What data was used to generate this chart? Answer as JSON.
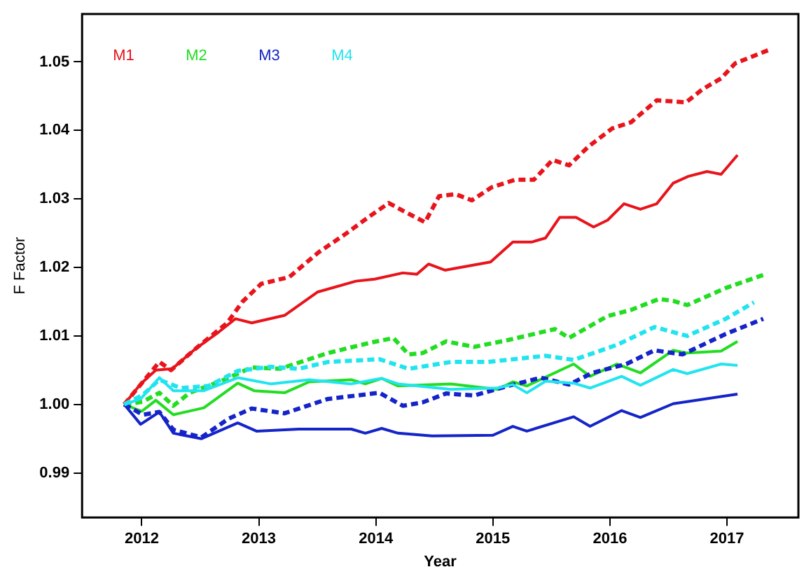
{
  "chart_data": {
    "type": "line",
    "xlabel": "Year",
    "ylabel": "F Factor",
    "xlim": [
      2011.49,
      2017.61
    ],
    "xticks": [
      2012,
      2013,
      2014,
      2015,
      2016,
      2017
    ],
    "ylim": [
      0.9835,
      1.057
    ],
    "yticks": [
      0.99,
      {
        "value": 1,
        "label": "1.00"
      },
      1.01,
      1.02,
      1.03,
      1.04,
      1.05
    ],
    "grid": false,
    "legend": "top left",
    "marker": "none",
    "series": [
      {
        "name": "M1",
        "color": "#e8141c",
        "line_style": "solid",
        "x": [
          2011.85,
          2011.99,
          2012.12,
          2012.26,
          2012.45,
          2012.66,
          2012.8,
          2012.94,
          2013.22,
          2013.5,
          2013.83,
          2013.99,
          2014.23,
          2014.35,
          2014.45,
          2014.59,
          2014.98,
          2015.17,
          2015.33,
          2015.45,
          2015.57,
          2015.71,
          2015.86,
          2015.98,
          2016.12,
          2016.26,
          2016.4,
          2016.54,
          2016.67,
          2016.83,
          2016.95,
          2017.09
        ],
        "values": [
          1.0,
          1.003,
          1.005,
          1.0052,
          1.008,
          1.0106,
          1.0125,
          1.0119,
          1.013,
          1.0164,
          1.018,
          1.0183,
          1.0192,
          1.019,
          1.0205,
          1.0196,
          1.0208,
          1.0237,
          1.0237,
          1.0243,
          1.0273,
          1.0273,
          1.0259,
          1.0269,
          1.0293,
          1.0285,
          1.0293,
          1.0323,
          1.0333,
          1.034,
          1.0336,
          1.0364
        ]
      },
      {
        "color": "#e8141c",
        "line_style": "dashed",
        "x": [
          2011.85,
          2012.15,
          2012.25,
          2012.45,
          2012.73,
          2012.86,
          2013.02,
          2013.26,
          2013.51,
          2013.75,
          2013.95,
          2014.11,
          2014.24,
          2014.42,
          2014.54,
          2014.68,
          2014.82,
          2014.99,
          2015.19,
          2015.35,
          2015.51,
          2015.65,
          2015.82,
          2016.02,
          2016.18,
          2016.4,
          2016.65,
          2016.79,
          2016.95,
          2017.07,
          2017.35
        ],
        "values": [
          1.0,
          1.0062,
          1.005,
          1.008,
          1.0119,
          1.015,
          1.0176,
          1.0186,
          1.0222,
          1.025,
          1.0275,
          1.0294,
          1.0282,
          1.0266,
          1.0304,
          1.0307,
          1.0298,
          1.0317,
          1.0328,
          1.0328,
          1.0357,
          1.0349,
          1.0377,
          1.0403,
          1.0412,
          1.0444,
          1.0441,
          1.046,
          1.0476,
          1.0498,
          1.0517
        ]
      },
      {
        "name": "M2",
        "color": "#22dd22",
        "line_style": "solid",
        "x": [
          2011.85,
          2012.0,
          2012.12,
          2012.27,
          2012.53,
          2012.82,
          2012.96,
          2013.22,
          2013.43,
          2013.79,
          2013.91,
          2014.05,
          2014.19,
          2014.64,
          2015.04,
          2015.17,
          2015.29,
          2015.69,
          2015.83,
          2016.06,
          2016.26,
          2016.54,
          2016.66,
          2016.95,
          2017.09
        ],
        "values": [
          1.0,
          0.999,
          1.0006,
          0.9985,
          0.9995,
          1.0031,
          1.002,
          1.0017,
          1.0033,
          1.0036,
          1.003,
          1.0038,
          1.0027,
          1.003,
          1.0022,
          1.0033,
          1.0027,
          1.0059,
          1.0041,
          1.0059,
          1.0046,
          1.0079,
          1.0075,
          1.0078,
          1.0092
        ]
      },
      {
        "color": "#22dd22",
        "line_style": "dashed",
        "x": [
          2011.85,
          2012.01,
          2012.15,
          2012.27,
          2012.41,
          2012.66,
          2012.94,
          2013.18,
          2013.59,
          2013.95,
          2014.15,
          2014.28,
          2014.4,
          2014.6,
          2014.84,
          2015.13,
          2015.53,
          2015.65,
          2015.98,
          2016.18,
          2016.42,
          2016.54,
          2016.66,
          2016.99,
          2017.31
        ],
        "values": [
          1.0,
          1.0004,
          1.0017,
          0.9998,
          1.0017,
          1.0033,
          1.0054,
          1.0052,
          1.0075,
          1.009,
          1.0097,
          1.0073,
          1.0075,
          1.0092,
          1.0084,
          1.0094,
          1.011,
          1.0097,
          1.0129,
          1.0138,
          1.0154,
          1.0151,
          1.0145,
          1.017,
          1.0189
        ]
      },
      {
        "name": "M3",
        "color": "#1424c8",
        "line_style": "solid",
        "x": [
          2011.85,
          2011.99,
          2012.15,
          2012.27,
          2012.51,
          2012.82,
          2012.98,
          2013.34,
          2013.79,
          2013.91,
          2014.05,
          2014.19,
          2014.48,
          2015.0,
          2015.17,
          2015.29,
          2015.69,
          2015.83,
          2016.1,
          2016.26,
          2016.54,
          2017.09
        ],
        "values": [
          1.0,
          0.9971,
          0.9989,
          0.9958,
          0.995,
          0.9973,
          0.9961,
          0.9964,
          0.9964,
          0.9958,
          0.9965,
          0.9958,
          0.9954,
          0.9955,
          0.9968,
          0.9961,
          0.9982,
          0.9968,
          0.9991,
          0.9981,
          1.0001,
          1.0015
        ]
      },
      {
        "color": "#1424c8",
        "line_style": "dashed",
        "x": [
          2011.85,
          2012.01,
          2012.15,
          2012.27,
          2012.51,
          2012.74,
          2012.94,
          2013.22,
          2013.59,
          2014.03,
          2014.23,
          2014.4,
          2014.6,
          2014.84,
          2015.13,
          2015.41,
          2015.65,
          2015.85,
          2016.14,
          2016.38,
          2016.62,
          2016.99,
          2017.31
        ],
        "values": [
          1.0,
          0.9985,
          0.9989,
          0.9963,
          0.9952,
          0.9979,
          0.9994,
          0.9987,
          1.0008,
          1.0017,
          0.9998,
          1.0003,
          1.0016,
          1.0013,
          1.0027,
          1.0039,
          1.0029,
          1.0046,
          1.0059,
          1.0079,
          1.0073,
          1.0103,
          1.0125
        ]
      },
      {
        "name": "M4",
        "color": "#22e4ee",
        "line_style": "solid",
        "x": [
          2011.85,
          2011.99,
          2012.15,
          2012.27,
          2012.53,
          2012.82,
          2013.1,
          2013.43,
          2013.79,
          2014.05,
          2014.19,
          2014.64,
          2015.04,
          2015.17,
          2015.29,
          2015.45,
          2015.69,
          2015.83,
          2016.1,
          2016.26,
          2016.54,
          2016.66,
          2016.95,
          2017.09
        ],
        "values": [
          1.0,
          1.0008,
          1.0039,
          1.002,
          1.002,
          1.0039,
          1.003,
          1.0036,
          1.003,
          1.0038,
          1.003,
          1.0022,
          1.0024,
          1.0029,
          1.0017,
          1.0034,
          1.0031,
          1.0024,
          1.0041,
          1.0028,
          1.0051,
          1.0045,
          1.0059,
          1.0057
        ]
      },
      {
        "color": "#22e4ee",
        "line_style": "dashed",
        "x": [
          2011.85,
          2012.01,
          2012.15,
          2012.33,
          2012.57,
          2012.82,
          2013.1,
          2013.34,
          2013.59,
          2014.03,
          2014.28,
          2014.64,
          2014.96,
          2015.45,
          2015.69,
          2016.06,
          2016.38,
          2016.66,
          2016.99,
          2017.23
        ],
        "values": [
          1.0,
          1.0014,
          1.0036,
          1.0024,
          1.0027,
          1.0049,
          1.0055,
          1.0052,
          1.0062,
          1.0066,
          1.0052,
          1.0062,
          1.0062,
          1.0071,
          1.0065,
          1.0087,
          1.0113,
          1.01,
          1.0125,
          1.0149
        ]
      }
    ]
  }
}
